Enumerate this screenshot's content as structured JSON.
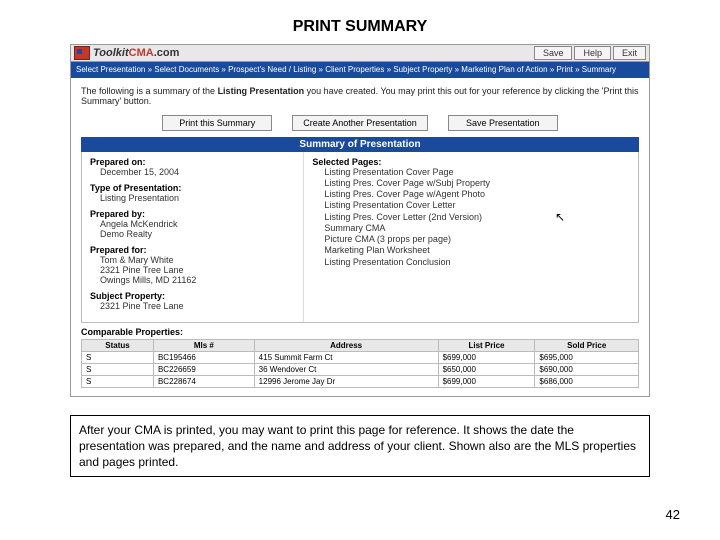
{
  "page": {
    "title": "PRINT SUMMARY",
    "caption": "After your CMA is printed, you may want to print this page for reference.  It shows the date the presentation was prepared, and the name and address of your client.  Shown also are the MLS properties and pages printed.",
    "number": "42"
  },
  "app": {
    "logo": {
      "toolkit": "Toolkit",
      "cma": "CMA",
      "dotcom": ".com"
    },
    "header_buttons": {
      "save": "Save",
      "help": "Help",
      "exit": "Exit"
    },
    "breadcrumb": "Select Presentation » Select Documents » Prospect's Need / Listing » Client Properties » Subject Property » Marketing Plan of Action » Print » Summary",
    "intro_pre": "The following is a summary of the ",
    "intro_bold": "Listing Presentation",
    "intro_post": " you have created. You may print this out for your reference by clicking the 'Print this Summary' button.",
    "action_buttons": {
      "print": "Print this Summary",
      "another": "Create Another Presentation",
      "savep": "Save Presentation"
    },
    "summary_bar": "Summary of Presentation"
  },
  "left": {
    "prepared_on_lbl": "Prepared on:",
    "prepared_on_val": "December 15, 2004",
    "type_lbl": "Type of Presentation:",
    "type_val": "Listing Presentation",
    "by_lbl": "Prepared by:",
    "by_val1": "Angela McKendrick",
    "by_val2": "Demo Realty",
    "for_lbl": "Prepared for:",
    "for_val1": "Tom & Mary White",
    "for_val2": "2321 Pine Tree Lane",
    "for_val3": "Owings Mills, MD 21162",
    "subj_lbl": "Subject Property:",
    "subj_val": "2321 Pine Tree Lane"
  },
  "right": {
    "label": "Selected Pages:",
    "p1": "Listing Presentation Cover Page",
    "p2": "Listing Pres. Cover Page w/Subj Property",
    "p3": "Listing Pres. Cover Page w/Agent Photo",
    "p4": "Listing Presentation Cover Letter",
    "p5": "Listing Pres. Cover Letter (2nd Version)",
    "p6": "Summary CMA",
    "p7": "Picture CMA (3 props per page)",
    "p8": "Marketing Plan Worksheet",
    "p9": "Listing Presentation Conclusion"
  },
  "comps": {
    "label": "Comparable Properties:",
    "headers": {
      "status": "Status",
      "mls": "Mls #",
      "addr": "Address",
      "list": "List Price",
      "sold": "Sold Price"
    },
    "rows": [
      {
        "status": "S",
        "mls": "BC195466",
        "addr": "415 Summit Farm Ct",
        "list": "$699,000",
        "sold": "$695,000"
      },
      {
        "status": "S",
        "mls": "BC226659",
        "addr": "36 Wendover Ct",
        "list": "$650,000",
        "sold": "$690,000"
      },
      {
        "status": "S",
        "mls": "BC228674",
        "addr": "12996 Jerome Jay Dr",
        "list": "$699,000",
        "sold": "$686,000"
      }
    ]
  },
  "colors": {
    "brand_blue": "#1a4a9c",
    "brand_red": "#c0392b",
    "border_gray": "#999999"
  }
}
